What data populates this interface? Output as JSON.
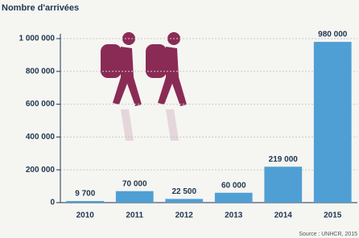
{
  "chart_data": {
    "type": "bar",
    "title": "Nombre d'arrivées",
    "categories": [
      "2010",
      "2011",
      "2012",
      "2013",
      "2014",
      "2015"
    ],
    "values": [
      9700,
      70000,
      22500,
      60000,
      219000,
      980000
    ],
    "value_labels": [
      "9 700",
      "70 000",
      "22 500",
      "60 000",
      "219 000",
      "980 000"
    ],
    "color": "#4f9fd4",
    "ylim": [
      0,
      1000000
    ],
    "yticks": [
      {
        "value": 0,
        "label": "0"
      },
      {
        "value": 200000,
        "label": "200 000"
      },
      {
        "value": 400000,
        "label": "400 000"
      },
      {
        "value": 600000,
        "label": "600 000"
      },
      {
        "value": 800000,
        "label": "800 000"
      },
      {
        "value": 1000000,
        "label": "1 000 000"
      }
    ],
    "grid": true,
    "source": "Source : UNHCR, 2015"
  }
}
